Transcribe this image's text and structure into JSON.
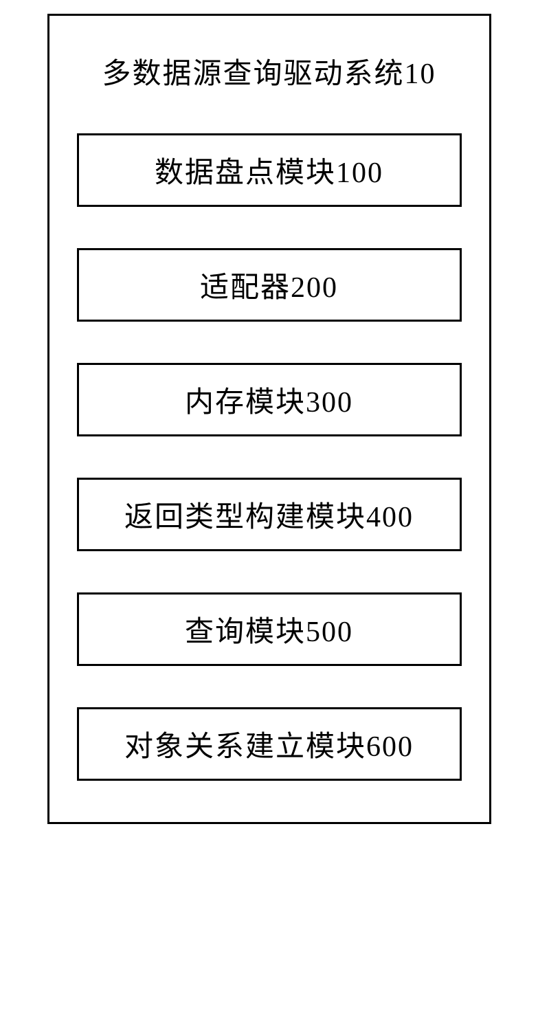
{
  "diagram": {
    "title": "多数据源查询驱动系统10",
    "title_fontsize": 42,
    "title_color": "#000000",
    "outer_border_color": "#000000",
    "outer_border_width": 3,
    "outer_padding": "50px 40px 60px 40px",
    "module_gap": 60,
    "module_border_color": "#000000",
    "module_border_width": 3,
    "module_width": 560,
    "module_fontsize": 42,
    "module_color": "#000000",
    "background_color": "#ffffff",
    "font_family": "KaiTi",
    "modules": [
      {
        "label": "数据盘点模块100"
      },
      {
        "label": "适配器200"
      },
      {
        "label": "内存模块300"
      },
      {
        "label": "返回类型构建模块400"
      },
      {
        "label": "查询模块500"
      },
      {
        "label": "对象关系建立模块600"
      }
    ]
  }
}
